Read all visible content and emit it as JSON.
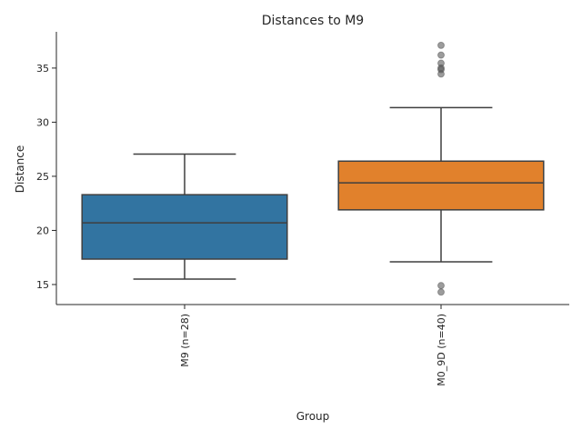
{
  "chart_data": {
    "type": "box",
    "title": "Distances to M9",
    "xlabel": "Group",
    "ylabel": "Distance",
    "ylim": [
      13.15,
      38.35
    ],
    "yticks": [
      15,
      20,
      25,
      30,
      35
    ],
    "grid": false,
    "categories": [
      "M9 (n=28)",
      "M0_9D (n=40)"
    ],
    "series": [
      {
        "name": "M9 (n=28)",
        "color": "#3274a1",
        "whisker_low": 15.5,
        "q1": 17.35,
        "median": 20.7,
        "q3": 23.3,
        "whisker_high": 27.05,
        "outliers": []
      },
      {
        "name": "M0_9D (n=40)",
        "color": "#e1812c",
        "whisker_low": 17.1,
        "q1": 21.9,
        "median": 24.4,
        "q3": 26.4,
        "whisker_high": 31.35,
        "outliers": [
          37.1,
          36.2,
          35.45,
          35.0,
          34.85,
          34.45,
          14.9,
          14.3
        ]
      }
    ]
  }
}
